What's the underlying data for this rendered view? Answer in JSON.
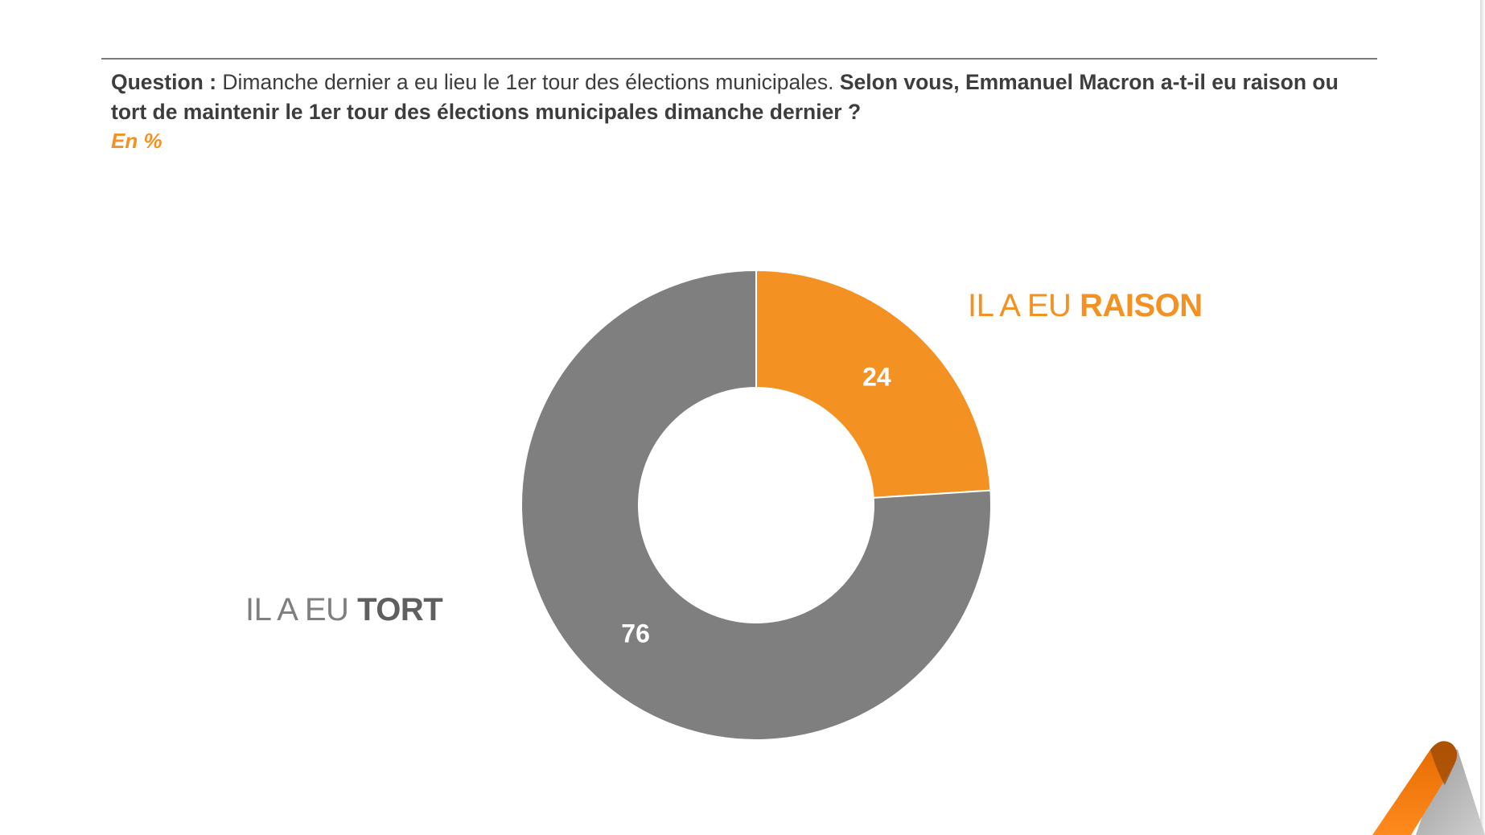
{
  "question": {
    "label": "Question :",
    "intro": "Dimanche dernier a eu lieu le 1er tour des élections municipales.",
    "bold": "Selon vous, Emmanuel Macron a-t-il eu raison ou tort de maintenir le 1er tour des élections municipales dimanche dernier ?"
  },
  "unit": "En %",
  "legend": {
    "raison_prefix": "IL A EU",
    "raison_strong": "RAISON",
    "tort_prefix": "IL A EU",
    "tort_strong": "TORT"
  },
  "colors": {
    "raison": "#f39223",
    "tort": "#7f7f7f",
    "separator": "#ffffff"
  },
  "chart_data": {
    "type": "pie",
    "variant": "donut",
    "title": "",
    "categories": [
      "IL A EU RAISON",
      "IL A EU TORT"
    ],
    "values": [
      24,
      76
    ],
    "data_labels": [
      "24",
      "76"
    ],
    "unit": "%",
    "start_angle_deg": 0,
    "direction": "clockwise"
  }
}
